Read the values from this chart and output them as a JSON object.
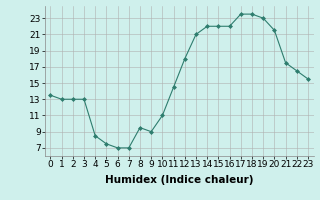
{
  "x": [
    0,
    1,
    2,
    3,
    4,
    5,
    6,
    7,
    8,
    9,
    10,
    11,
    12,
    13,
    14,
    15,
    16,
    17,
    18,
    19,
    20,
    21,
    22,
    23
  ],
  "y": [
    13.5,
    13,
    13,
    13,
    8.5,
    7.5,
    7,
    7,
    9.5,
    9,
    11,
    14.5,
    18,
    21,
    22,
    22,
    22,
    23.5,
    23.5,
    23,
    21.5,
    17.5,
    16.5,
    15.5
  ],
  "line_color": "#2e7d6e",
  "marker": "D",
  "marker_size": 2.0,
  "bg_color": "#cff0ec",
  "grid_color": "#b0b0b0",
  "xlabel": "Humidex (Indice chaleur)",
  "xlabel_fontsize": 7.5,
  "tick_fontsize": 6.5,
  "ylim": [
    6,
    24.5
  ],
  "xlim": [
    -0.5,
    23.5
  ],
  "yticks": [
    7,
    9,
    11,
    13,
    15,
    17,
    19,
    21,
    23
  ],
  "xticks": [
    0,
    1,
    2,
    3,
    4,
    5,
    6,
    7,
    8,
    9,
    10,
    11,
    12,
    13,
    14,
    15,
    16,
    17,
    18,
    19,
    20,
    21,
    22,
    23
  ]
}
